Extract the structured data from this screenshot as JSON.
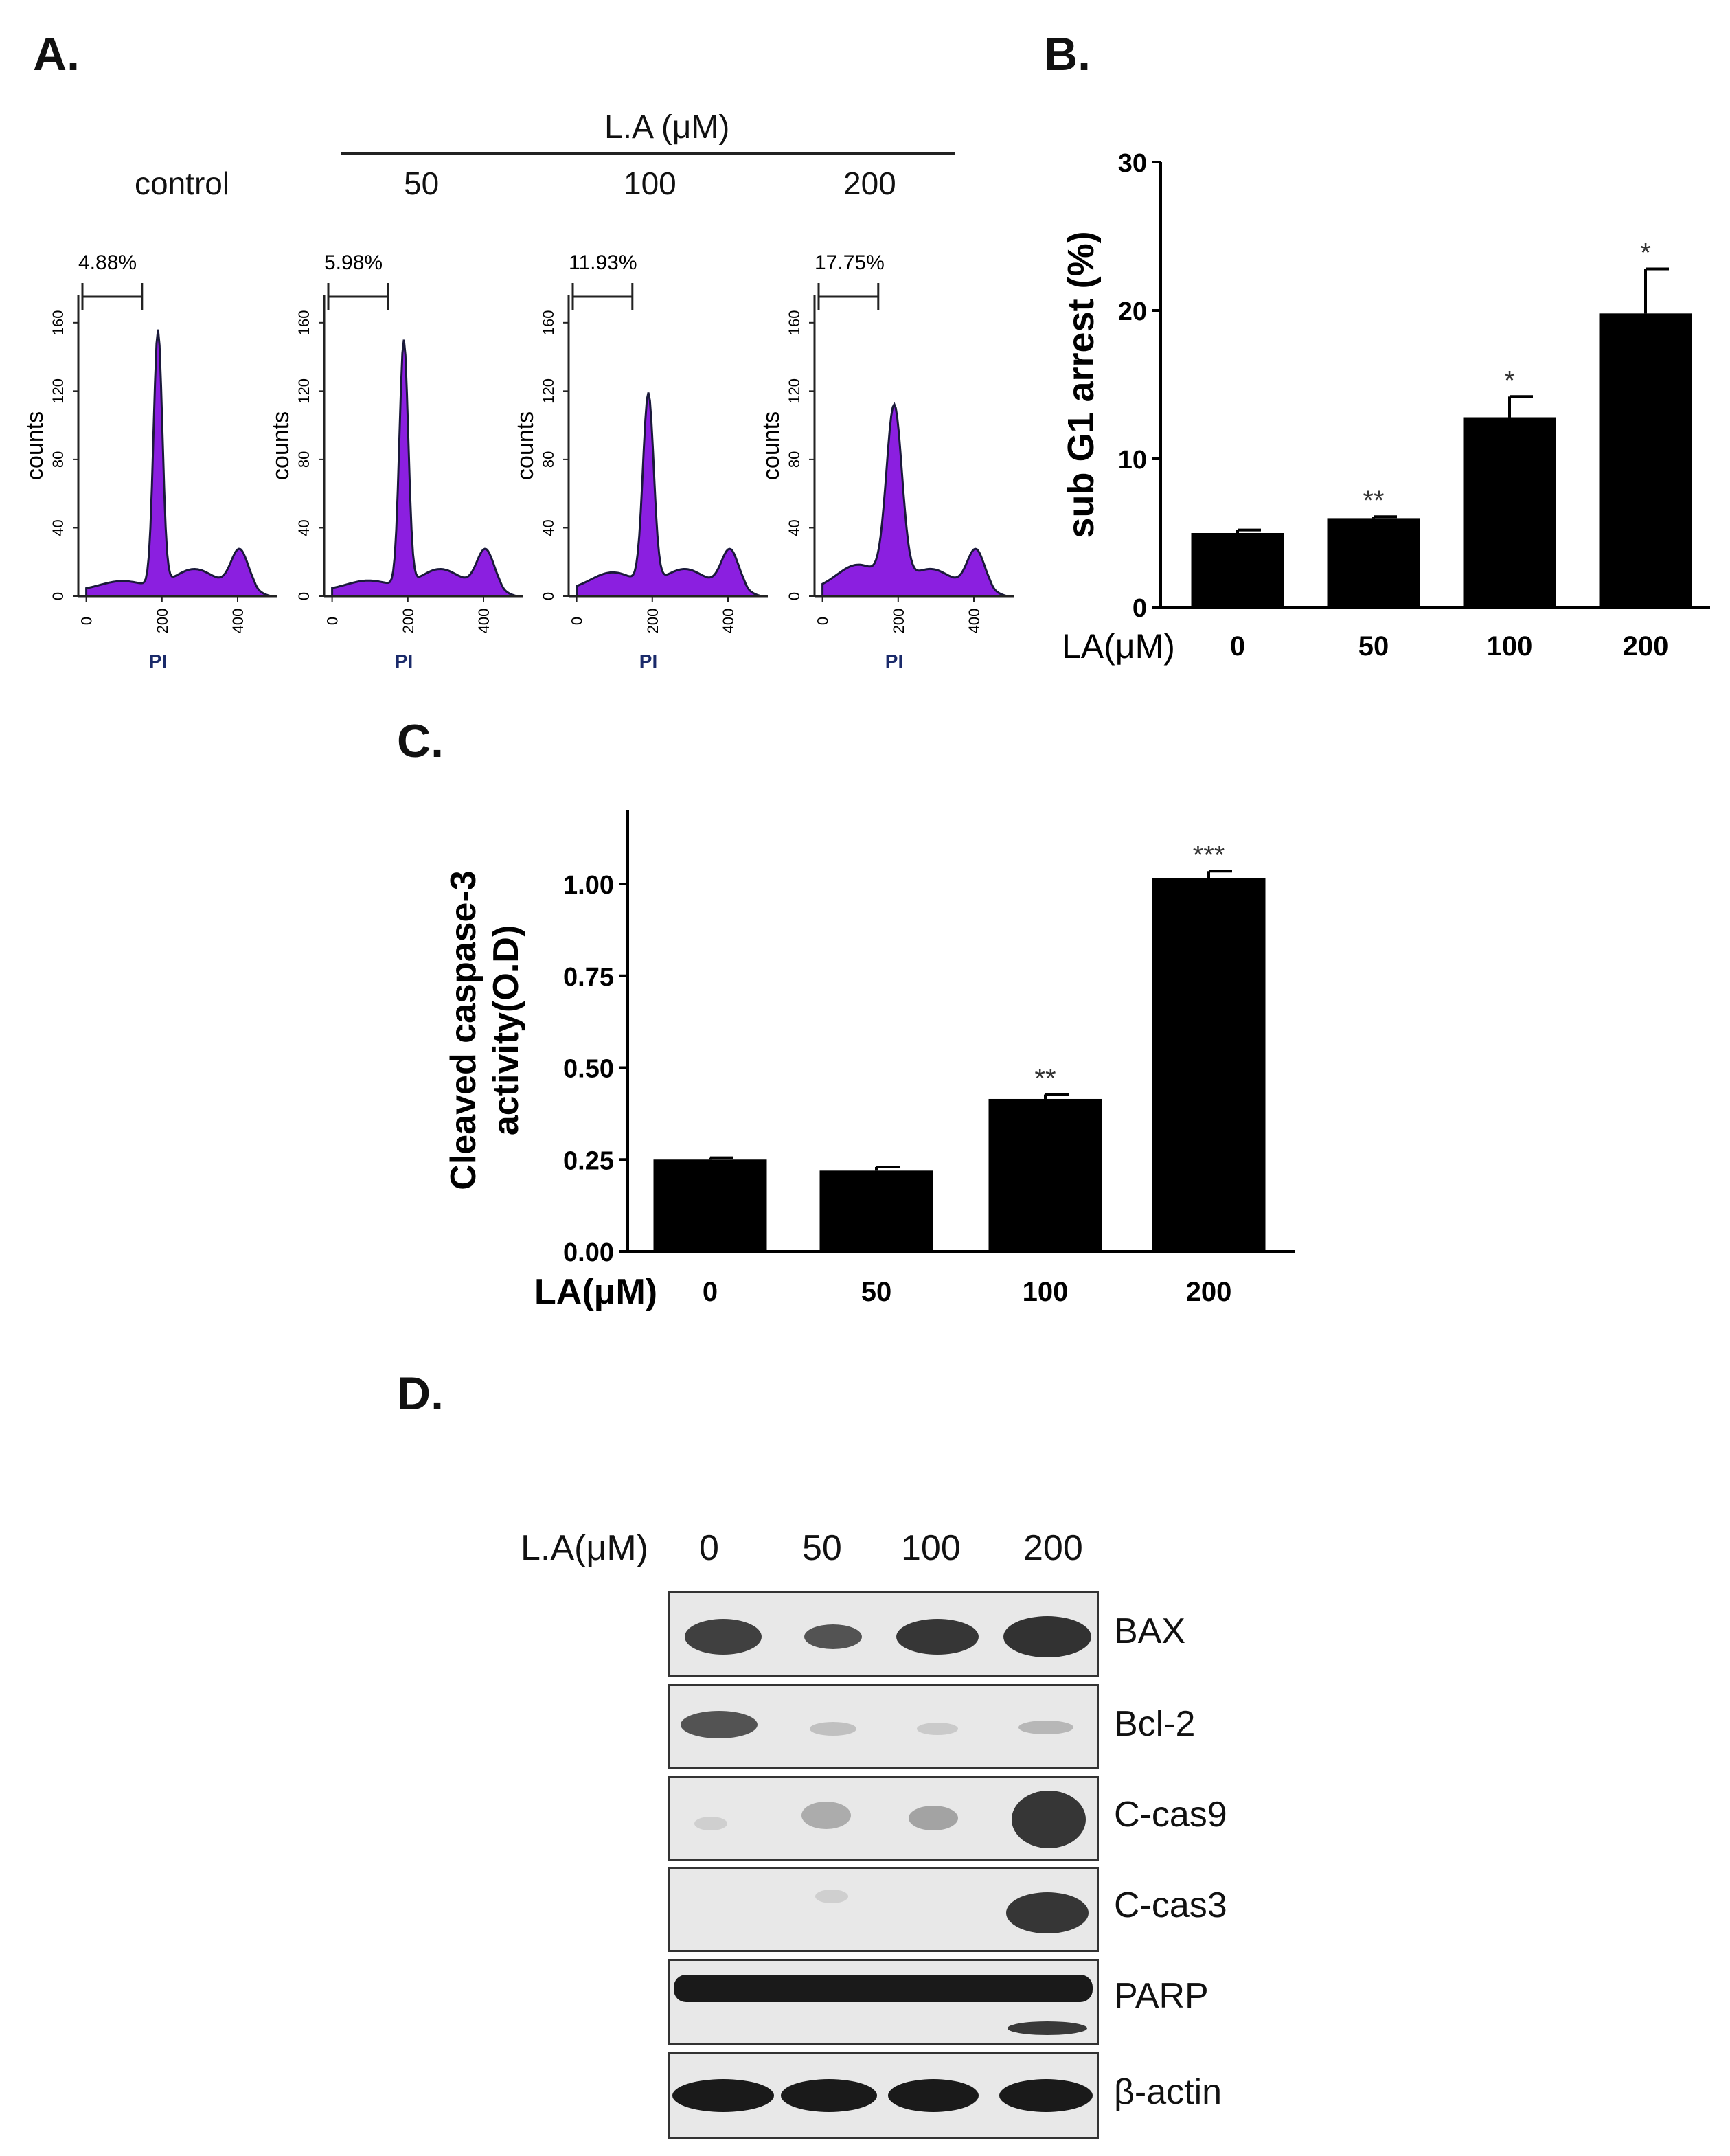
{
  "panels": {
    "a": "A.",
    "b": "B.",
    "c": "C.",
    "d": "D."
  },
  "panel_a": {
    "group_label": "L.A (μM)",
    "control_label": "control",
    "doses": [
      "50",
      "100",
      "200"
    ],
    "percents": [
      "4.88%",
      "5.98%",
      "11.93%",
      "17.75%"
    ],
    "ylabel": "counts",
    "xlabel": "PI",
    "yticks": [
      "0",
      "40",
      "80",
      "120",
      "160"
    ],
    "xticks": [
      "0",
      "200",
      "400"
    ],
    "fill_color": "#8b1fe0"
  },
  "chart_data": [
    {
      "type": "bar",
      "id": "B",
      "title": "",
      "ylabel": "sub G1 arrest (%)",
      "xlabel": "LA(μM)",
      "categories": [
        "0",
        "50",
        "100",
        "200"
      ],
      "values": [
        5.0,
        6.0,
        12.8,
        19.8
      ],
      "errors": [
        0.2,
        0.1,
        1.4,
        3.0
      ],
      "significance": [
        "",
        "**",
        "*",
        "*"
      ],
      "ylim": [
        0,
        30
      ],
      "yticks": [
        "0",
        "10",
        "20",
        "30"
      ]
    },
    {
      "type": "bar",
      "id": "C",
      "title": "",
      "ylabel_line1": "Cleaved caspase-3",
      "ylabel_line2": "activity(O.D)",
      "xlabel": "LA(μM)",
      "categories": [
        "0",
        "50",
        "100",
        "200"
      ],
      "values": [
        0.25,
        0.22,
        0.415,
        1.015
      ],
      "errors": [
        0.005,
        0.01,
        0.012,
        0.02
      ],
      "significance": [
        "",
        "",
        "**",
        "***"
      ],
      "ylim": [
        0,
        1.2
      ],
      "yticks": [
        "0.00",
        "0.25",
        "0.50",
        "0.75",
        "1.00"
      ]
    }
  ],
  "panel_d": {
    "header_label": "L.A(μM)",
    "lanes": [
      "0",
      "50",
      "100",
      "200"
    ],
    "blots": [
      "BAX",
      "Bcl-2",
      "C-cas9",
      "C-cas3",
      "PARP",
      "β-actin"
    ]
  }
}
